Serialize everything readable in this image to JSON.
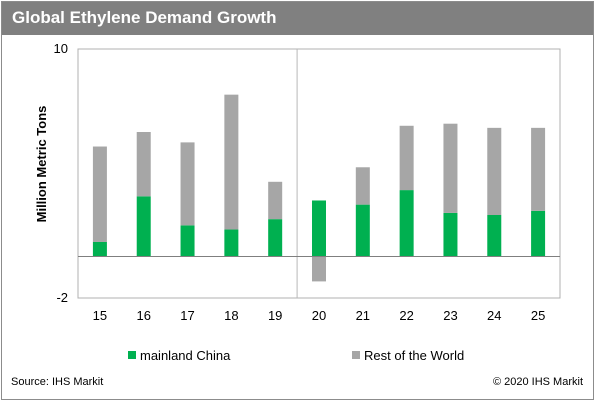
{
  "header": {
    "title": "Global Ethylene Demand Growth"
  },
  "footer": {
    "source": "Source: IHS Markit",
    "copyright": "© 2020 IHS Markit"
  },
  "chart_data": {
    "type": "bar",
    "stacked": true,
    "title": "Global Ethylene Demand Growth",
    "xlabel": "",
    "ylabel": "Million Metric Tons",
    "ylim": [
      -2,
      10
    ],
    "y_tick_labels": [
      "10",
      "-2"
    ],
    "categories": [
      "15",
      "16",
      "17",
      "18",
      "19",
      "20",
      "21",
      "22",
      "23",
      "24",
      "25"
    ],
    "series": [
      {
        "name": "mainland China",
        "color": "#00b050",
        "values": [
          0.7,
          2.9,
          1.5,
          1.3,
          1.8,
          2.7,
          2.5,
          3.2,
          2.1,
          2.0,
          2.2
        ]
      },
      {
        "name": "Rest of the World",
        "color": "#a6a6a6",
        "values": [
          4.6,
          3.1,
          4.0,
          6.5,
          1.8,
          -1.2,
          1.8,
          3.1,
          4.3,
          4.2,
          4.0
        ]
      }
    ],
    "legend_position": "bottom",
    "grid": false
  }
}
